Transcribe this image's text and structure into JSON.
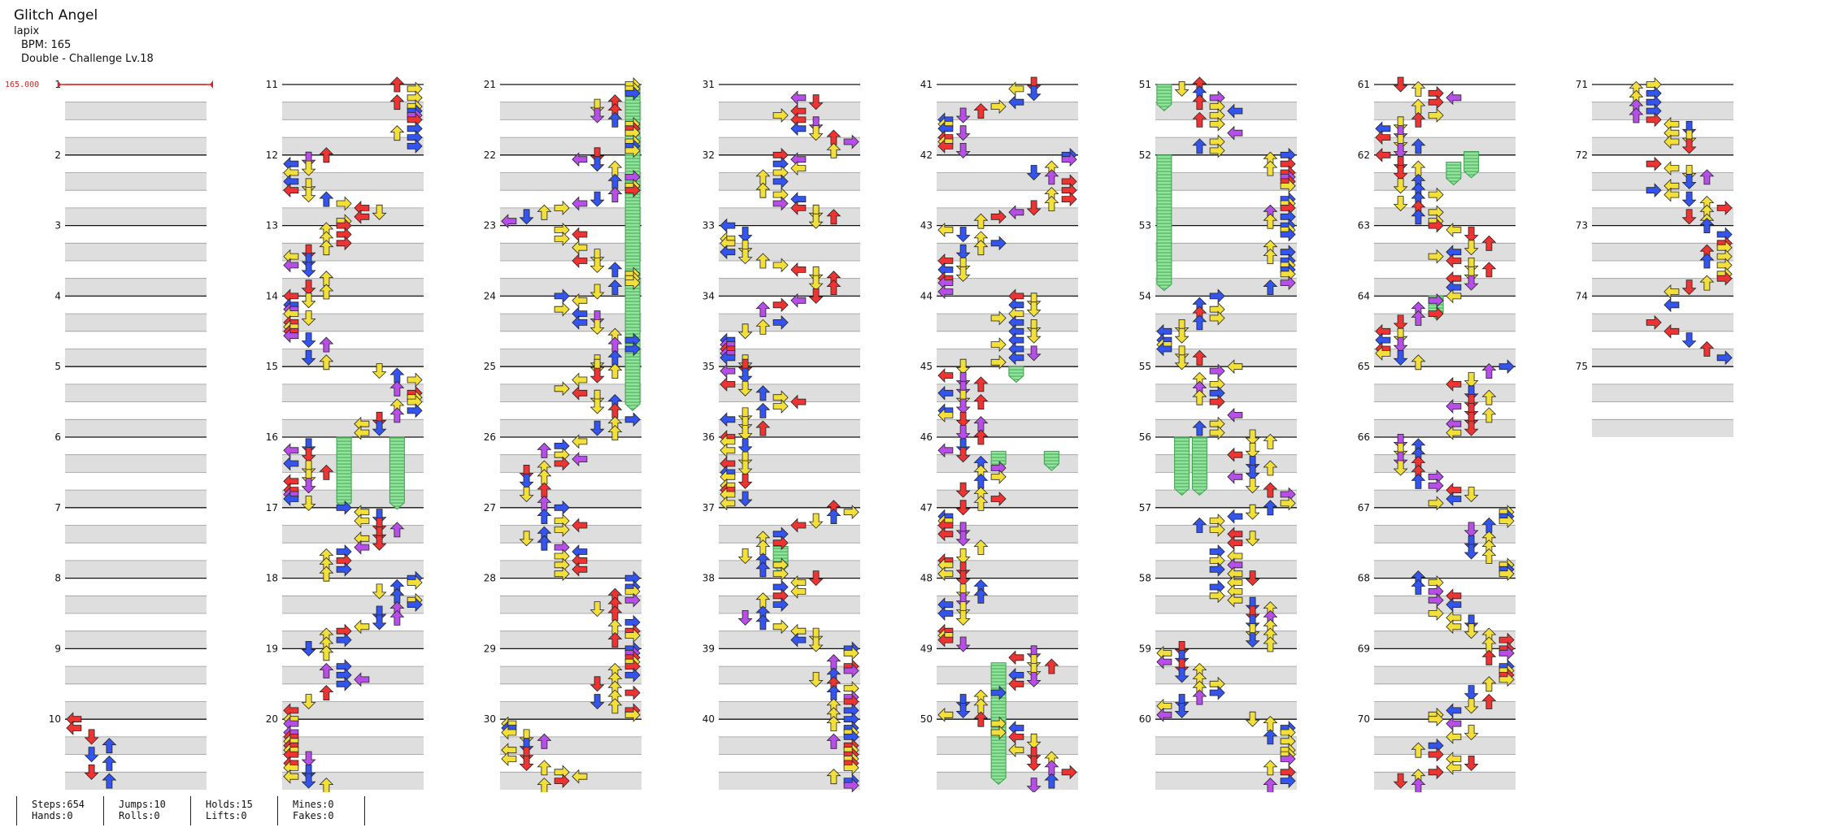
{
  "song": {
    "title": "Glitch Angel",
    "artist": "lapix",
    "bpm_text": "BPM: 165",
    "difficulty_text": "Double - Challenge Lv.18"
  },
  "bpm_marker": {
    "label": "165.000",
    "color": "#dd2222"
  },
  "chart": {
    "measure_count": 75,
    "measures_per_column": 10,
    "lanes": 8,
    "lane_order": [
      "left",
      "down",
      "up",
      "right",
      "left",
      "down",
      "up",
      "right"
    ],
    "colors": {
      "red": "#ee3333",
      "blue": "#3355ee",
      "yellow": "#f3df3a",
      "purple": "#b84ee8",
      "hold": "#7ee08a"
    },
    "holds": [
      {
        "lane": 0,
        "start": 51.0,
        "end": 51.35
      },
      {
        "lane": 0,
        "start": 52.0,
        "end": 53.9
      },
      {
        "lane": 3,
        "start": 16.0,
        "end": 17.0
      },
      {
        "lane": 6,
        "start": 16.0,
        "end": 17.0
      },
      {
        "lane": 7,
        "start": 21.0,
        "end": 25.6
      },
      {
        "lane": 3,
        "start": 49.2,
        "end": 50.9
      },
      {
        "lane": 1,
        "start": 56.0,
        "end": 56.8
      },
      {
        "lane": 2,
        "start": 56.0,
        "end": 56.8
      },
      {
        "lane": 4,
        "start": 62.1,
        "end": 62.4
      },
      {
        "lane": 5,
        "start": 61.95,
        "end": 62.3
      },
      {
        "lane": 3,
        "start": 64.0,
        "end": 64.3
      },
      {
        "lane": 4,
        "start": 45.0,
        "end": 45.2
      },
      {
        "lane": 3,
        "start": 46.2,
        "end": 46.45
      },
      {
        "lane": 6,
        "start": 46.2,
        "end": 46.45
      },
      {
        "lane": 3,
        "start": 37.55,
        "end": 37.9
      }
    ]
  },
  "stats": {
    "steps": "Steps:654",
    "hands": "Hands:0",
    "jumps": "Jumps:10",
    "rolls": "Rolls:0",
    "holds": "Holds:15",
    "lifts": "Lifts:0",
    "mines": "Mines:0",
    "fakes": "Fakes:0"
  }
}
